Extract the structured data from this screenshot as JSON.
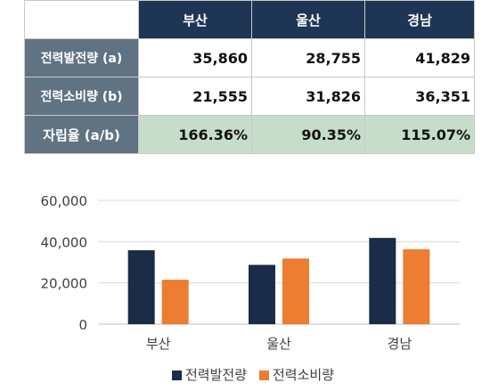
{
  "table": {
    "columns": [
      "부산",
      "울산",
      "경남"
    ],
    "rows": [
      {
        "label": "전력발전량 (a)",
        "values": [
          "35,860",
          "28,755",
          "41,829"
        ]
      },
      {
        "label": "전력소비량 (b)",
        "values": [
          "21,555",
          "31,826",
          "36,351"
        ]
      },
      {
        "label": "자립율 (a/b)",
        "values": [
          "166.36%",
          "90.35%",
          "115.07%"
        ]
      }
    ]
  },
  "chart_data": {
    "type": "bar",
    "categories": [
      "부산",
      "울산",
      "경남"
    ],
    "series": [
      {
        "name": "전력발전량",
        "values": [
          35860,
          28755,
          41829
        ],
        "color": "#1a2c47"
      },
      {
        "name": "전력소비량",
        "values": [
          21555,
          31826,
          36351
        ],
        "color": "#ec7d31"
      }
    ],
    "ylim": [
      0,
      60000
    ],
    "yticks": [
      0,
      20000,
      40000,
      60000
    ],
    "ytick_labels": [
      "0",
      "20,000",
      "40,000",
      "60,000"
    ],
    "grid": true,
    "legend": "bottom"
  }
}
